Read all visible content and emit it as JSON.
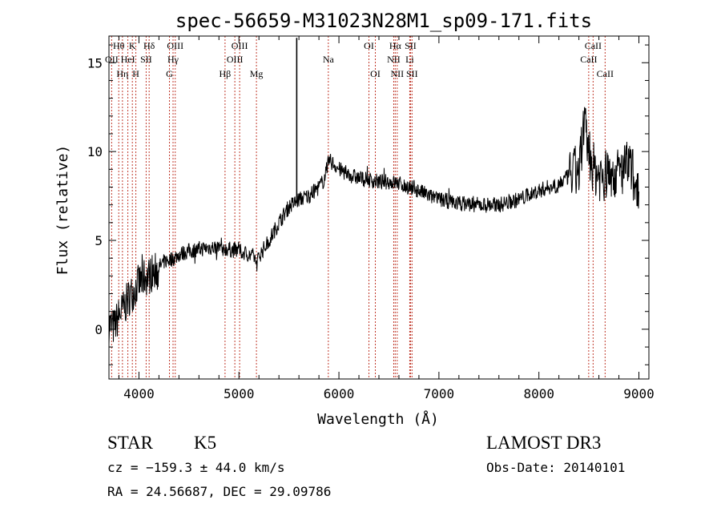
{
  "chart_data": {
    "type": "line",
    "title": "spec-56659-M31023N28M1_sp09-171.fits",
    "xlabel": "Wavelength (Å)",
    "ylabel": "Flux (relative)",
    "xlim": [
      3700,
      9100
    ],
    "ylim": [
      -2.8,
      16.5
    ],
    "x_ticks": [
      4000,
      5000,
      6000,
      7000,
      8000,
      9000
    ],
    "x_tick_labels": [
      "4000",
      "5000",
      "6000",
      "7000",
      "8000",
      "9000"
    ],
    "y_ticks": [
      0,
      5,
      10,
      15
    ],
    "y_tick_labels": [
      "0",
      "5",
      "10",
      "15"
    ],
    "series": [
      {
        "name": "spectrum",
        "x": [
          3700,
          3750,
          3800,
          3850,
          3900,
          3950,
          4000,
          4050,
          4100,
          4150,
          4200,
          4250,
          4300,
          4350,
          4400,
          4450,
          4500,
          4600,
          4700,
          4800,
          4900,
          5000,
          5050,
          5100,
          5150,
          5180,
          5200,
          5300,
          5400,
          5500,
          5580,
          5600,
          5700,
          5800,
          5850,
          5900,
          5950,
          6000,
          6100,
          6200,
          6300,
          6400,
          6500,
          6600,
          6700,
          6800,
          6900,
          7000,
          7200,
          7400,
          7600,
          7800,
          8000,
          8200,
          8400,
          8450,
          8500,
          8550,
          8600,
          8650,
          8700,
          8800,
          8850,
          8900,
          8950,
          9000
        ],
        "y": [
          0.3,
          0.1,
          0.8,
          1.2,
          1.8,
          2.2,
          2.6,
          2.9,
          3.0,
          3.3,
          3.5,
          3.8,
          3.9,
          4.0,
          4.2,
          4.3,
          4.4,
          4.5,
          4.6,
          4.6,
          4.5,
          4.4,
          4.3,
          4.2,
          4.1,
          3.7,
          4.1,
          5.0,
          6.0,
          6.9,
          7.2,
          7.3,
          7.5,
          8.0,
          8.4,
          9.5,
          9.3,
          9.0,
          8.7,
          8.5,
          8.4,
          8.3,
          8.3,
          8.2,
          8.0,
          7.8,
          7.5,
          7.3,
          7.1,
          7.0,
          7.0,
          7.3,
          7.8,
          8.2,
          9.0,
          11.5,
          10.0,
          9.0,
          8.7,
          8.6,
          8.8,
          8.8,
          9.0,
          9.2,
          8.6,
          8.2
        ]
      }
    ],
    "line_features": [
      {
        "name": "OII",
        "x": 3727,
        "row": 1
      },
      {
        "name": "Hθ",
        "x": 3798,
        "row": 0
      },
      {
        "name": "Hη",
        "x": 3835,
        "row": 2
      },
      {
        "name": "HeI",
        "x": 3889,
        "row": 1
      },
      {
        "name": "K",
        "x": 3934,
        "row": 0
      },
      {
        "name": "H",
        "x": 3969,
        "row": 2
      },
      {
        "name": "SII",
        "x": 4072,
        "row": 1
      },
      {
        "name": "Hδ",
        "x": 4102,
        "row": 0
      },
      {
        "name": "G",
        "x": 4305,
        "row": 2
      },
      {
        "name": "Hγ",
        "x": 4341,
        "row": 1
      },
      {
        "name": "OIII",
        "x": 4363,
        "row": 0
      },
      {
        "name": "Hβ",
        "x": 4861,
        "row": 2
      },
      {
        "name": "OIII",
        "x": 4959,
        "row": 1
      },
      {
        "name": "OIII",
        "x": 5007,
        "row": 0
      },
      {
        "name": "Mg",
        "x": 5175,
        "row": 2
      },
      {
        "name": "Na",
        "x": 5894,
        "row": 1
      },
      {
        "name": "OI",
        "x": 6300,
        "row": 0
      },
      {
        "name": "OI",
        "x": 6364,
        "row": 2
      },
      {
        "name": "NII",
        "x": 6548,
        "row": 1
      },
      {
        "name": "Hα",
        "x": 6563,
        "row": 0
      },
      {
        "name": "NII",
        "x": 6583,
        "row": 2
      },
      {
        "name": "Li",
        "x": 6708,
        "row": 1
      },
      {
        "name": "SII",
        "x": 6716,
        "row": 0
      },
      {
        "name": "SII",
        "x": 6731,
        "row": 2
      },
      {
        "name": "CaII",
        "x": 8498,
        "row": 1
      },
      {
        "name": "CaII",
        "x": 8542,
        "row": 0
      },
      {
        "name": "CaII",
        "x": 8662,
        "row": 2
      }
    ]
  },
  "info": {
    "class": "STAR",
    "subclass": "K5",
    "survey": "LAMOST DR3",
    "cz": "cz = −159.3 ± 44.0 km/s",
    "obs_date": "Obs-Date: 20140101",
    "coords": "RA =  24.56687, DEC =  29.09786"
  },
  "colors": {
    "spectrum": "#000000",
    "line_marker": "#c0392b",
    "axis": "#000000"
  }
}
